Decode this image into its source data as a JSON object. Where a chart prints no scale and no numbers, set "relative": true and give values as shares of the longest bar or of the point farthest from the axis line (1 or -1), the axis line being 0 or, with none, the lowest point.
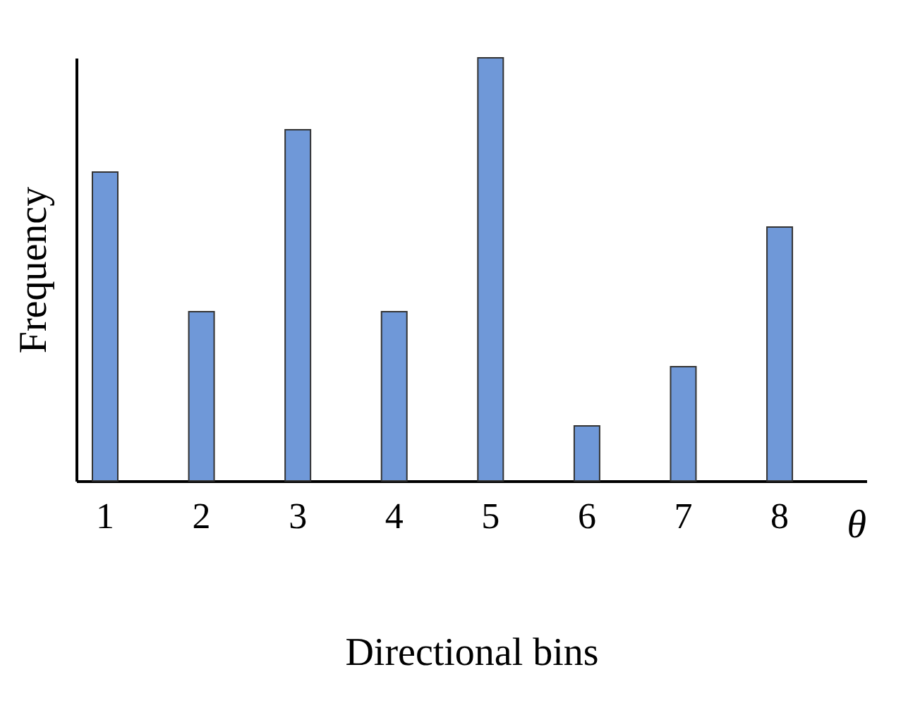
{
  "chart_data": {
    "type": "bar",
    "relative": true,
    "xlabel": "Directional bins",
    "ylabel": "Frequency",
    "annotations": [
      "θ"
    ],
    "categories": [
      "1",
      "2",
      "3",
      "4",
      "5",
      "6",
      "7",
      "8"
    ],
    "values": [
      0.73,
      0.4,
      0.83,
      0.4,
      1,
      0.13,
      0.27,
      0.6
    ],
    "color": "#6f98d8",
    "grid": false
  }
}
